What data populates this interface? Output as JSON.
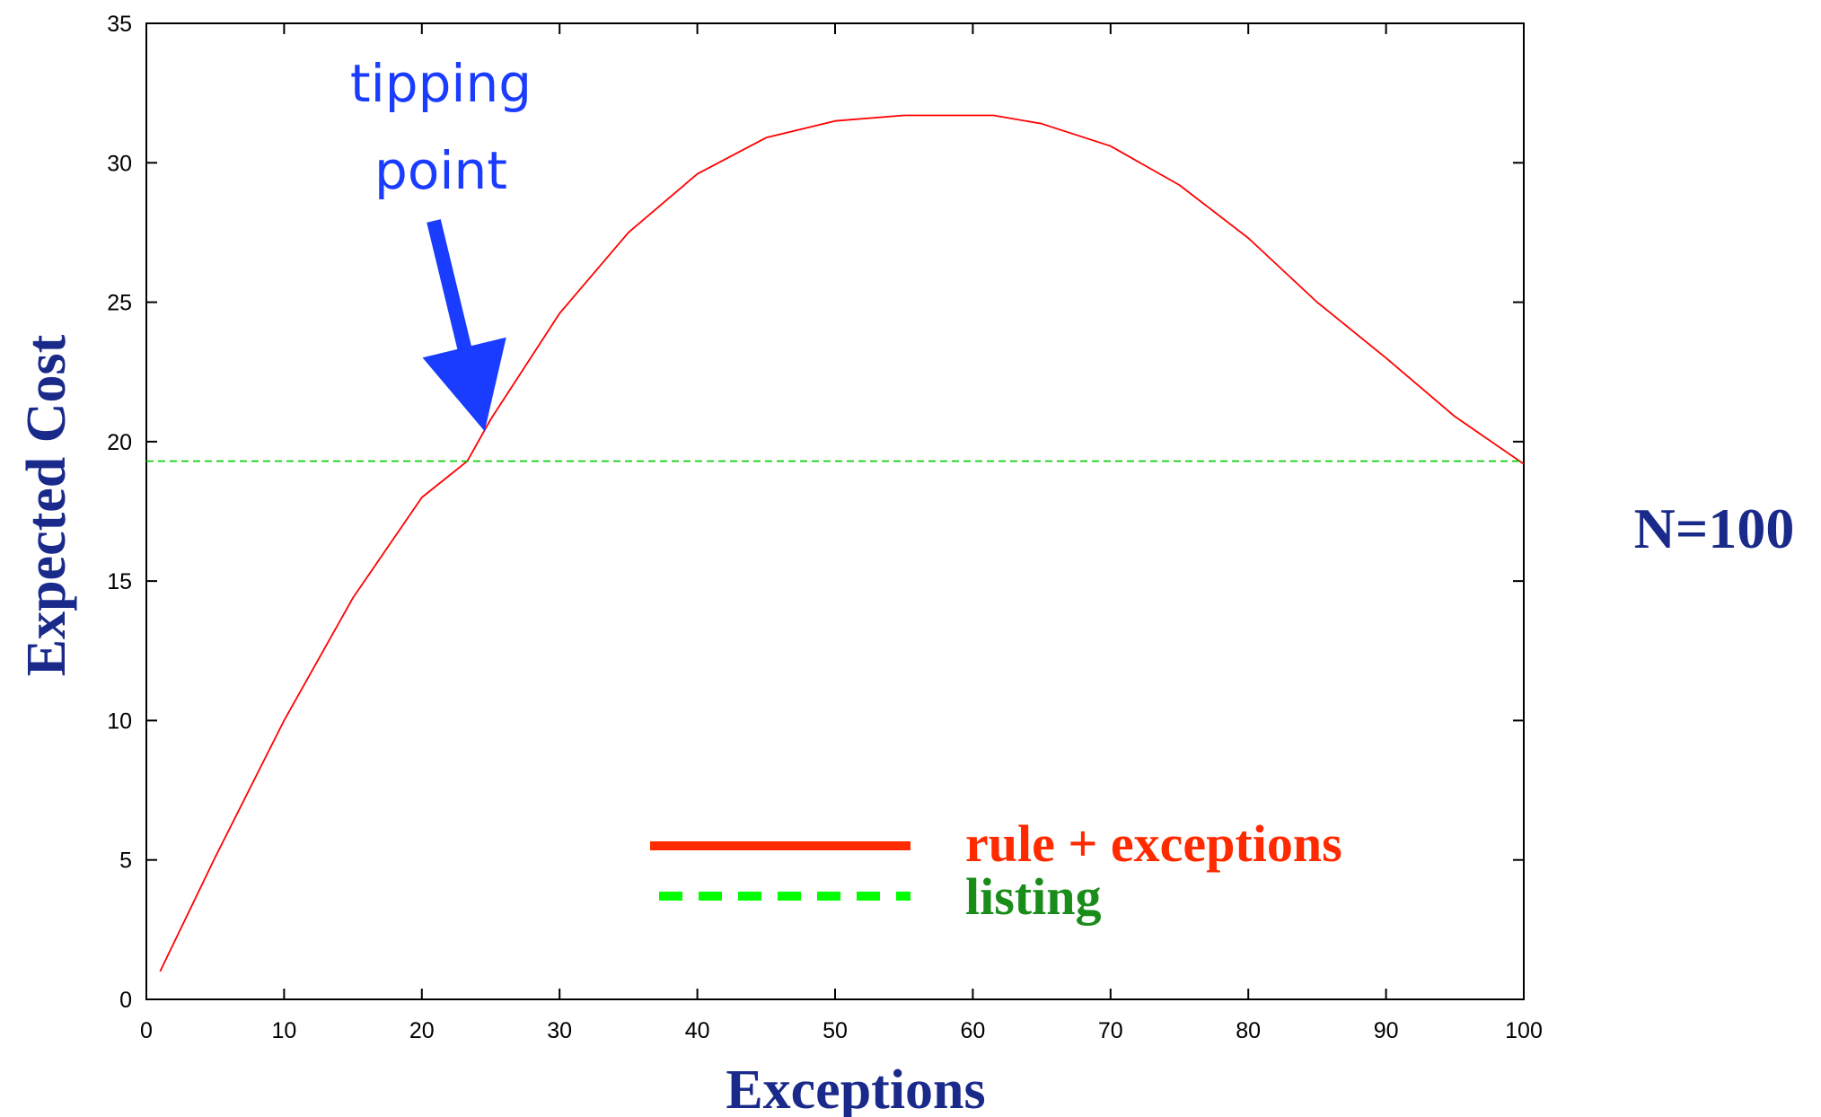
{
  "chart_data": {
    "type": "line",
    "xlabel": "Exceptions",
    "ylabel": "Expected Cost",
    "xlim": [
      0,
      100
    ],
    "ylim": [
      0,
      35
    ],
    "xticks": [
      0,
      10,
      20,
      30,
      40,
      50,
      60,
      70,
      80,
      90,
      100
    ],
    "yticks": [
      0,
      5,
      10,
      15,
      20,
      25,
      30,
      35
    ],
    "grid": false,
    "legend_position": "bottom-right",
    "series": [
      {
        "name": "rule + exceptions",
        "color": "#ff0000",
        "legend_color": "#ff2a00",
        "style": "solid",
        "x": [
          1,
          5,
          10,
          15,
          20,
          23.3,
          25,
          30,
          35,
          40,
          45,
          50,
          55,
          60,
          61.5,
          65,
          70,
          75,
          80,
          85,
          90,
          95,
          100
        ],
        "y": [
          1.0,
          5.1,
          10.0,
          14.4,
          18.0,
          19.3,
          20.8,
          24.6,
          27.5,
          29.6,
          30.9,
          31.5,
          31.7,
          31.7,
          31.7,
          31.4,
          30.6,
          29.2,
          27.3,
          25.0,
          23.0,
          20.9,
          19.2
        ]
      },
      {
        "name": "listing",
        "color": "#00cc00",
        "legend_color": "#00ff00",
        "style": "dashed",
        "x": [
          0,
          100
        ],
        "y": [
          19.3,
          19.3
        ]
      }
    ],
    "annotations": [
      {
        "text_lines": [
          "tipping",
          "point"
        ],
        "color": "#1a3cff",
        "x": 23.3,
        "y": 19.3
      }
    ],
    "side_label": "N=100",
    "colors": {
      "axis_titles": "#1a2a8a",
      "listing_legend_text": "#1a8c1a"
    }
  }
}
